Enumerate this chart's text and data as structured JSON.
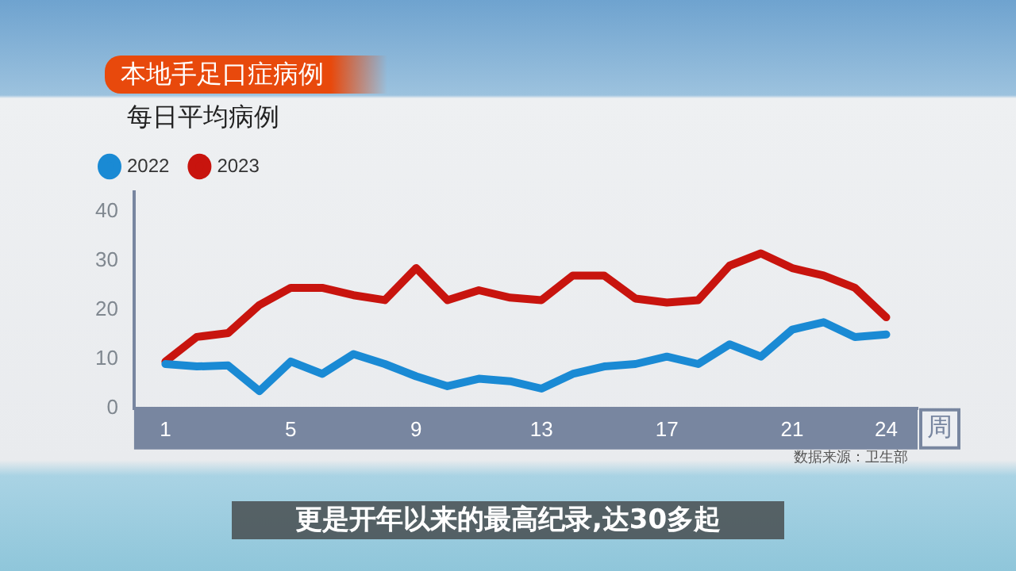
{
  "chart_data": {
    "type": "line",
    "title": "本地手足口症病例",
    "subtitle": "每日平均病例",
    "xlabel": "周",
    "x": [
      1,
      2,
      3,
      4,
      5,
      6,
      7,
      8,
      9,
      10,
      11,
      12,
      13,
      14,
      15,
      16,
      17,
      18,
      19,
      20,
      21,
      22,
      23,
      24
    ],
    "series": [
      {
        "name": "2022",
        "color": "#1a8ad4",
        "values": [
          9,
          8.5,
          8.7,
          3.5,
          9.5,
          7,
          11,
          9,
          6.5,
          4.5,
          6,
          5.5,
          4,
          7,
          8.5,
          9,
          10.5,
          9,
          13,
          10.5,
          16,
          17.5,
          14.5,
          15
        ]
      },
      {
        "name": "2023",
        "color": "#c8140e",
        "values": [
          9.5,
          14.5,
          15.3,
          21,
          24.5,
          24.5,
          23,
          22,
          28.5,
          22,
          24,
          22.5,
          22,
          27,
          27,
          22.3,
          21.5,
          22,
          29,
          31.5,
          28.5,
          27,
          24.5,
          18.5
        ]
      }
    ],
    "xlim": [
      0,
      25
    ],
    "xticks": [
      1,
      5,
      9,
      13,
      17,
      21,
      24
    ],
    "ylim": [
      0,
      44
    ],
    "yticks": [
      0,
      10,
      20,
      30,
      40
    ],
    "grid": false,
    "legend": "top left",
    "marker": "none",
    "line_style": "solid",
    "annotations": [
      "数据来源：卫生部",
      "更是开年以来的最高纪录,达30多起"
    ]
  }
}
